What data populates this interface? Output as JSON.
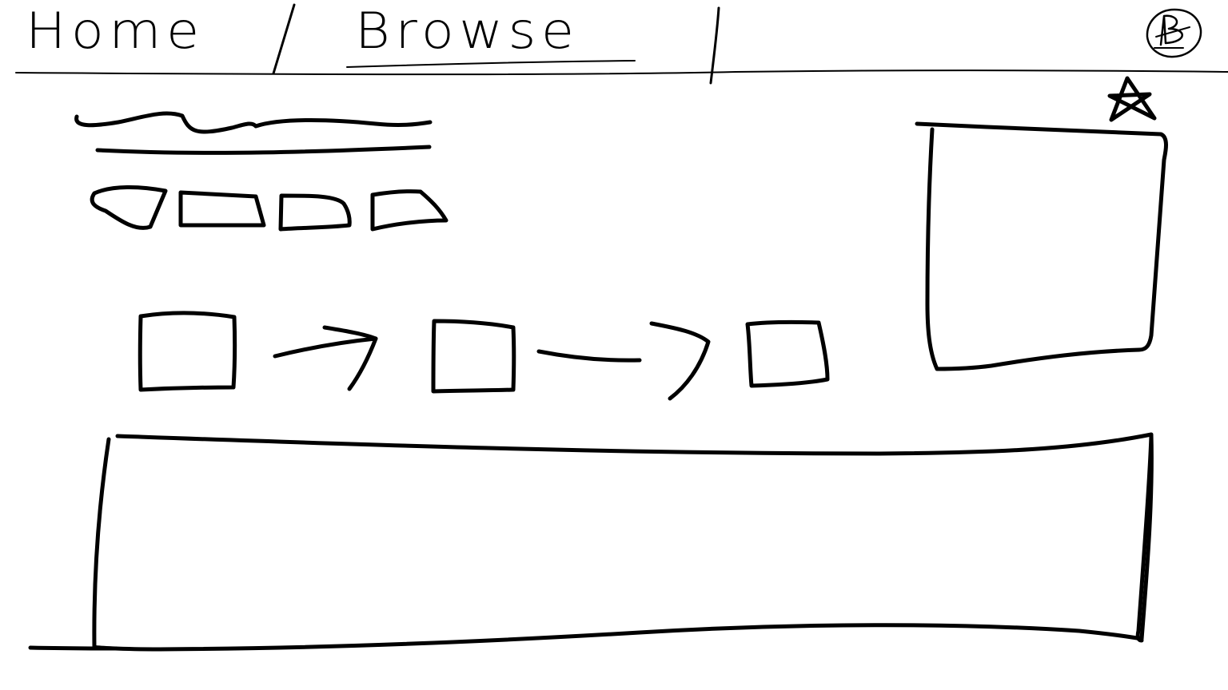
{
  "nav": {
    "home_label": "Home",
    "separator": "/",
    "browse_label": "Browse"
  },
  "icons": {
    "user": "user-avatar-icon",
    "favorite": "star-icon",
    "flow_arrow": "arrow-right-icon"
  },
  "colors": {
    "ink": "#000000",
    "paper": "#ffffff"
  }
}
